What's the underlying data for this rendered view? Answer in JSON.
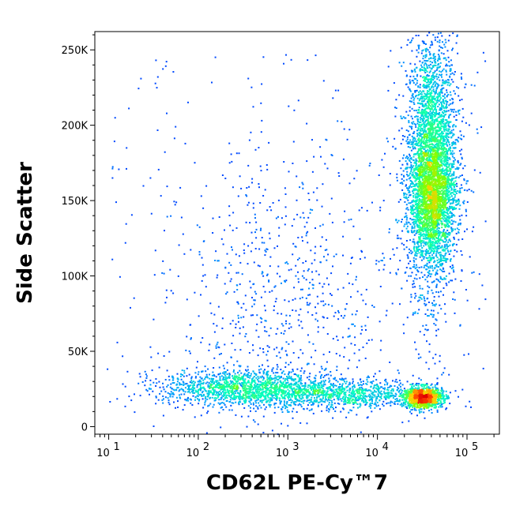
{
  "chart_data": {
    "type": "scatter",
    "subtype": "flow-cytometry-density-dot-plot",
    "xlabel": "CD62L PE-Cy™7",
    "ylabel": "Side Scatter",
    "x_scale": "log",
    "xlim": [
      7,
      230000
    ],
    "ylim": [
      -5000,
      262144
    ],
    "x_ticks": [
      {
        "value": 10,
        "base": "10",
        "exp": "1"
      },
      {
        "value": 100,
        "base": "10",
        "exp": "2"
      },
      {
        "value": 1000,
        "base": "10",
        "exp": "3"
      },
      {
        "value": 10000,
        "base": "10",
        "exp": "4"
      },
      {
        "value": 100000,
        "base": "10",
        "exp": "5"
      }
    ],
    "y_ticks": [
      {
        "value": 0,
        "label": "0"
      },
      {
        "value": 50000,
        "label": "50K"
      },
      {
        "value": 100000,
        "label": "100K"
      },
      {
        "value": 150000,
        "label": "150K"
      },
      {
        "value": 200000,
        "label": "200K"
      },
      {
        "value": 250000,
        "label": "250K"
      }
    ],
    "grid": false,
    "colormap": [
      "#0000ff",
      "#00a0ff",
      "#00ffc0",
      "#80ff00",
      "#ffd000",
      "#ff4000",
      "#e00000"
    ],
    "populations": [
      {
        "log10_x": 4.6,
        "sd_log10_x": 0.14,
        "y": 175000,
        "sd_y": 42000,
        "weight": 0.38
      },
      {
        "log10_x": 4.6,
        "sd_log10_x": 0.13,
        "y": 150000,
        "sd_y": 18000,
        "weight": 0.16
      },
      {
        "log10_x": 4.5,
        "sd_log10_x": 0.11,
        "y": 20000,
        "sd_y": 3500,
        "weight": 0.13
      },
      {
        "log10_x": 2.5,
        "sd_log10_x": 0.45,
        "y": 26000,
        "sd_y": 6000,
        "weight": 0.16
      },
      {
        "log10_x": 3.6,
        "sd_log10_x": 0.45,
        "y": 22000,
        "sd_y": 5000,
        "weight": 0.1
      },
      {
        "log10_x": 3.0,
        "sd_log10_x": 0.6,
        "y": 80000,
        "sd_y": 50000,
        "weight": 0.07
      }
    ]
  }
}
